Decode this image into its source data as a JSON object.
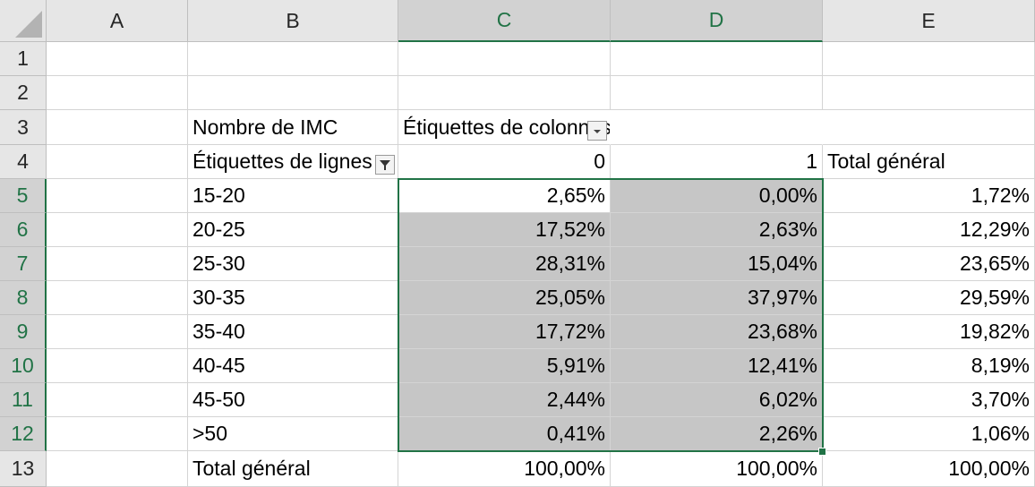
{
  "columns": [
    "A",
    "B",
    "C",
    "D",
    "E"
  ],
  "rows": [
    "1",
    "2",
    "3",
    "4",
    "5",
    "6",
    "7",
    "8",
    "9",
    "10",
    "11",
    "12",
    "13"
  ],
  "pivot": {
    "value_label": "Nombre de IMC",
    "col_labels_header": "Étiquettes de colonnes",
    "row_labels_header": "Étiquettes de lignes",
    "col_values": [
      "0",
      "1"
    ],
    "grand_total_label": "Total général",
    "data_rows": [
      {
        "label": "15-20",
        "c0": "2,65%",
        "c1": "0,00%",
        "total": "1,72%"
      },
      {
        "label": "20-25",
        "c0": "17,52%",
        "c1": "2,63%",
        "total": "12,29%"
      },
      {
        "label": "25-30",
        "c0": "28,31%",
        "c1": "15,04%",
        "total": "23,65%"
      },
      {
        "label": "30-35",
        "c0": "25,05%",
        "c1": "37,97%",
        "total": "29,59%"
      },
      {
        "label": "35-40",
        "c0": "17,72%",
        "c1": "23,68%",
        "total": "19,82%"
      },
      {
        "label": "40-45",
        "c0": "5,91%",
        "c1": "12,41%",
        "total": "8,19%"
      },
      {
        "label": "45-50",
        "c0": "2,44%",
        "c1": "6,02%",
        "total": "3,70%"
      },
      {
        "label": ">50",
        "c0": "0,41%",
        "c1": "2,26%",
        "total": "1,06%"
      }
    ],
    "total_row": {
      "label": "Total général",
      "c0": "100,00%",
      "c1": "100,00%",
      "total": "100,00%"
    }
  },
  "icons": {
    "col_filter": "dropdown-arrow-icon",
    "row_filter": "filter-funnel-icon"
  },
  "colors": {
    "accent": "#217346",
    "selection_fill": "#c6c6c6",
    "header_bg": "#e6e6e6"
  }
}
